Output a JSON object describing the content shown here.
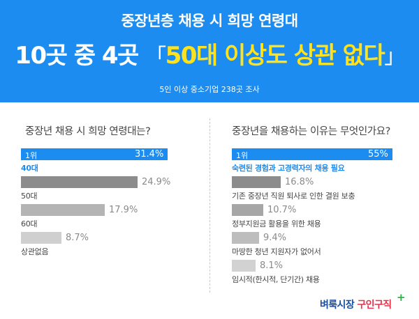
{
  "header": {
    "subtitle": "중장년층 채용 시 희망 연령대",
    "headline_plain": "10곳 중 4곳 ",
    "bracket_open": "「",
    "headline_highlight": "50대 이상도 상관 없다",
    "bracket_close": "」",
    "note": "5인 이상 중소기업 238곳 조사",
    "bg_color": "#1c8cf0",
    "highlight_color": "#ffe21f"
  },
  "chart_data": [
    {
      "type": "bar",
      "title": "중장년 채용 시 희망 연령대는?",
      "lead_badge": "1위",
      "categories": [
        "40대",
        "50대",
        "60대",
        "상관없음"
      ],
      "values": [
        31.4,
        24.9,
        17.9,
        8.7
      ],
      "value_labels": [
        "31.4%",
        "24.9%",
        "17.9%",
        "8.7%"
      ],
      "colors": [
        "#1c8cf0",
        "#8c8c8c",
        "#b4b4b4",
        "#cfcfcf"
      ]
    },
    {
      "type": "bar",
      "title": "중장년을 채용하는 이유는 무엇인가요?",
      "lead_badge": "1위",
      "categories": [
        "숙련된 경험과 고경력자의 채용 필요",
        "기존 중장년 직원 퇴사로 인한 결원 보충",
        "정부지원금 활용을 위한 채용",
        "마땅한 청년 지원자가 없어서",
        "임시적(한시적, 단기간) 채용"
      ],
      "values": [
        55,
        16.8,
        10.7,
        9.4,
        8.1
      ],
      "value_labels": [
        "55%",
        "16.8%",
        "10.7%",
        "9.4%",
        "8.1%"
      ],
      "colors": [
        "#1c8cf0",
        "#8c8c8c",
        "#a6a6a6",
        "#bdbdbd",
        "#d2d2d2"
      ]
    }
  ],
  "logo": {
    "part1": "벼룩시장",
    "part2": "구인구직",
    "plus": "+"
  }
}
